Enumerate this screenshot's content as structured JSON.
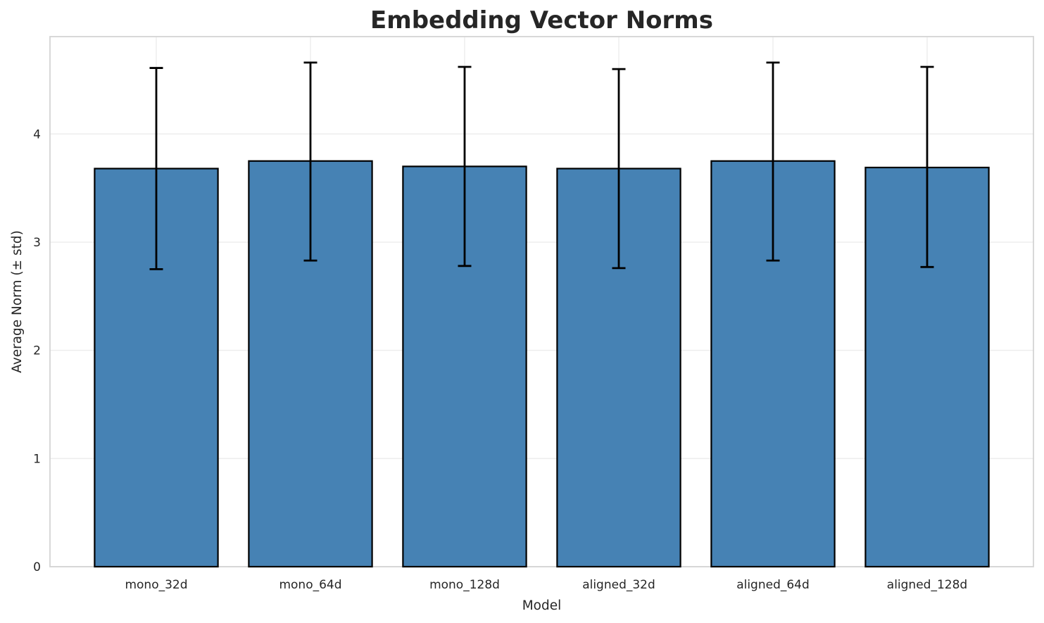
{
  "chart_data": {
    "type": "bar",
    "title": "Embedding Vector Norms",
    "xlabel": "Model",
    "ylabel": "Average Norm (± std)",
    "categories": [
      "mono_32d",
      "mono_64d",
      "mono_128d",
      "aligned_32d",
      "aligned_64d",
      "aligned_128d"
    ],
    "values": [
      3.68,
      3.75,
      3.7,
      3.68,
      3.75,
      3.69
    ],
    "error_std": [
      0.93,
      0.92,
      0.92,
      0.92,
      0.92,
      0.92
    ],
    "error_top": [
      4.61,
      4.66,
      4.62,
      4.6,
      4.66,
      4.62
    ],
    "error_bottom": [
      2.75,
      2.83,
      2.78,
      2.76,
      2.83,
      2.77
    ],
    "yticks": [
      0,
      1,
      2,
      3,
      4
    ],
    "ytick_labels": [
      "0",
      "1",
      "2",
      "3",
      "4"
    ],
    "ylim": [
      0,
      4.9
    ],
    "grid": true,
    "legend_position": "none",
    "bar_color": "#4682b4",
    "bar_edge_color": "#000000",
    "error_bar_color": "#000000",
    "grid_color": "#ededed",
    "spine_color": "#d4d4d4",
    "text_color": "#262626",
    "background_color": "#ffffff"
  }
}
